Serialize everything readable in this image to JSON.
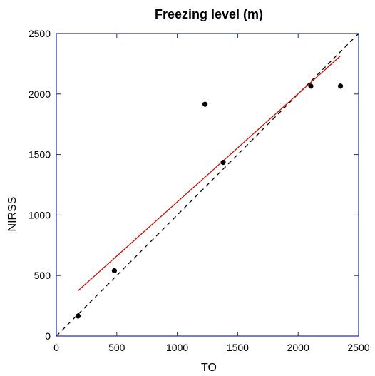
{
  "chart_data": {
    "type": "scatter",
    "title": "Freezing level (m)",
    "xlabel": "TO",
    "ylabel": "NIRSS",
    "xlim": [
      0,
      2500
    ],
    "ylim": [
      0,
      2500
    ],
    "xticks": [
      0,
      500,
      1000,
      1500,
      2000,
      2500
    ],
    "yticks": [
      0,
      500,
      1000,
      1500,
      2000,
      2500
    ],
    "grid": false,
    "legend": "none",
    "points": [
      {
        "x": 180,
        "y": 165
      },
      {
        "x": 480,
        "y": 540
      },
      {
        "x": 1230,
        "y": 1915
      },
      {
        "x": 1380,
        "y": 1435
      },
      {
        "x": 2105,
        "y": 2065
      },
      {
        "x": 2350,
        "y": 2065
      }
    ],
    "fit_line": {
      "x": [
        180,
        2350
      ],
      "y": [
        375,
        2315
      ]
    },
    "identity_line": {
      "x": [
        0,
        2500
      ],
      "y": [
        0,
        2500
      ]
    },
    "colors": {
      "frame": "#1f2a8c",
      "points": "#000000",
      "fit_line": "#cc1100",
      "identity_line": "#000000"
    }
  }
}
